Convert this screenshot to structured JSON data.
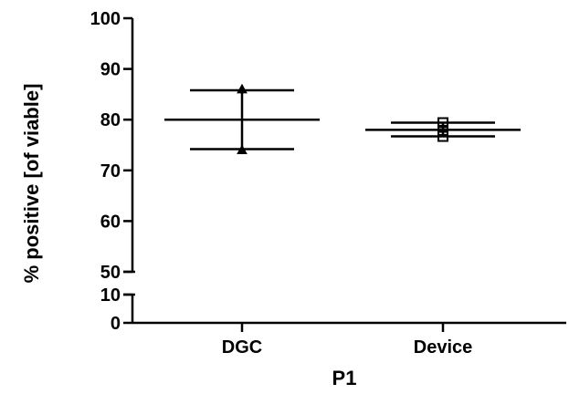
{
  "chart_data": {
    "type": "scatter",
    "title": "",
    "xlabel": "P1",
    "ylabel": "% positive [of viable]",
    "categories": [
      "DGC",
      "Device"
    ],
    "y_axis_segments": [
      {
        "range": [
          0,
          10
        ],
        "ticks": [
          0,
          10
        ]
      },
      {
        "range": [
          50,
          100
        ],
        "ticks": [
          50,
          60,
          70,
          80,
          90,
          100
        ]
      }
    ],
    "y_axis_break": true,
    "grid": false,
    "legend": "none",
    "series": [
      {
        "category": "DGC",
        "marker": "triangle",
        "points": [
          74,
          86
        ],
        "mean": 80,
        "sd_upper": 85.8,
        "sd_lower": 74.2
      },
      {
        "category": "Device",
        "marker": "square",
        "points": [
          76.7,
          77.9,
          79.4
        ],
        "mean": 78,
        "sd_upper": 79.4,
        "sd_lower": 76.7
      }
    ]
  }
}
